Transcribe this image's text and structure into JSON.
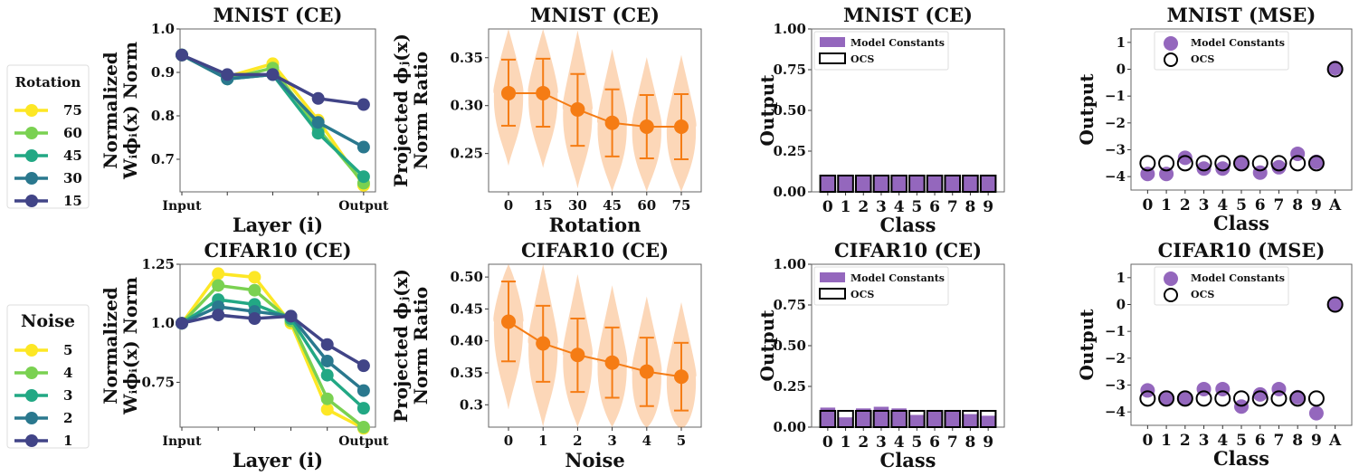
{
  "chart_data": [
    {
      "type": "line",
      "title": "MNIST (CE)",
      "xlabel": "Layer (i)",
      "ylabel": [
        "Normalized",
        "Wᵢϕᵢ(x) Norm"
      ],
      "x_ticklabels": [
        "Input",
        "",
        "",
        "",
        "Output"
      ],
      "ylim": [
        0.625,
        1.0
      ],
      "yticks": [
        0.7,
        0.8,
        0.9,
        1.0
      ],
      "legend": {
        "title": "Rotation",
        "placement": "outside-left"
      },
      "series": [
        {
          "name": "75",
          "color": "#fde725",
          "values": [
            0.94,
            0.89,
            0.92,
            0.79,
            0.64
          ]
        },
        {
          "name": "60",
          "color": "#7ad151",
          "values": [
            0.94,
            0.885,
            0.91,
            0.77,
            0.645
          ]
        },
        {
          "name": "45",
          "color": "#22a884",
          "values": [
            0.94,
            0.885,
            0.895,
            0.76,
            0.66
          ]
        },
        {
          "name": "30",
          "color": "#2a788e",
          "values": [
            0.94,
            0.885,
            0.895,
            0.785,
            0.728
          ]
        },
        {
          "name": "15",
          "color": "#414487",
          "values": [
            0.94,
            0.895,
            0.895,
            0.84,
            0.826
          ]
        }
      ]
    },
    {
      "type": "violin",
      "title": "MNIST (CE)",
      "xlabel": "Rotation",
      "ylabel": [
        "Projected ϕⱼ(x)",
        "Norm Ratio"
      ],
      "categories": [
        "0",
        "15",
        "30",
        "45",
        "60",
        "75"
      ],
      "ylim": [
        0.21,
        0.38
      ],
      "yticks": [
        0.25,
        0.3,
        0.35
      ],
      "ytick_labels": [
        "0.25",
        "0.30",
        "0.35"
      ],
      "color": "#f57c14",
      "means": [
        0.313,
        0.313,
        0.296,
        0.282,
        0.278,
        0.278
      ],
      "lows": [
        0.279,
        0.278,
        0.258,
        0.247,
        0.245,
        0.244
      ],
      "highs": [
        0.348,
        0.349,
        0.333,
        0.317,
        0.311,
        0.312
      ]
    },
    {
      "type": "bar",
      "title": "MNIST (CE)",
      "xlabel": "Class",
      "ylabel": "Output",
      "categories": [
        "0",
        "1",
        "2",
        "3",
        "4",
        "5",
        "6",
        "7",
        "8",
        "9"
      ],
      "ylim": [
        0,
        1
      ],
      "yticks": [
        0,
        0.25,
        0.5,
        0.75,
        1.0
      ],
      "ytick_labels": [
        "0.00",
        "0.25",
        "0.50",
        "0.75",
        "1.00"
      ],
      "legend": {
        "placement": "top-left"
      },
      "series": [
        {
          "name": "Model Constants",
          "color": "#9467bd",
          "values": [
            0.1,
            0.105,
            0.1,
            0.1,
            0.1,
            0.1,
            0.1,
            0.1,
            0.1,
            0.1
          ]
        },
        {
          "name": "OCS",
          "color": "#000000",
          "values": [
            0.1,
            0.1,
            0.1,
            0.1,
            0.1,
            0.1,
            0.1,
            0.1,
            0.1,
            0.1
          ]
        }
      ]
    },
    {
      "type": "scatter",
      "title": "MNIST (MSE)",
      "xlabel": "Class",
      "ylabel": "Output",
      "categories": [
        "0",
        "1",
        "2",
        "3",
        "4",
        "5",
        "6",
        "7",
        "8",
        "9",
        "A"
      ],
      "ylim": [
        -4.5,
        1.5
      ],
      "yticks": [
        -4,
        -3,
        -2,
        -1,
        0,
        1
      ],
      "ytick_labels": [
        "−4",
        "−3",
        "−2",
        "−1",
        "0",
        "1"
      ],
      "legend": {
        "placement": "top-left"
      },
      "series": [
        {
          "name": "Model Constants",
          "color": "#9467bd",
          "values": [
            -3.9,
            -3.9,
            -3.3,
            -3.7,
            -3.7,
            -3.5,
            -3.85,
            -3.65,
            -3.15,
            -3.45,
            0.05
          ]
        },
        {
          "name": "OCS",
          "color": "#000000",
          "values": [
            -3.5,
            -3.5,
            -3.5,
            -3.5,
            -3.5,
            -3.5,
            -3.5,
            -3.5,
            -3.5,
            -3.5,
            0
          ]
        }
      ]
    },
    {
      "type": "line",
      "title": "CIFAR10 (CE)",
      "xlabel": "Layer (i)",
      "ylabel": [
        "Normalized",
        "Wᵢϕᵢ(x) Norm"
      ],
      "x_ticklabels": [
        "Input",
        "",
        "",
        "",
        "",
        "Output"
      ],
      "ylim": [
        0.56,
        1.25
      ],
      "yticks": [
        0.75,
        1.0,
        1.25
      ],
      "ytick_labels": [
        "0.75",
        "1.0",
        "1.25"
      ],
      "legend": {
        "title": "Noise",
        "placement": "outside-left"
      },
      "series": [
        {
          "name": "5",
          "color": "#fde725",
          "values": [
            1.0,
            1.21,
            1.195,
            1.0,
            0.635,
            0.555
          ]
        },
        {
          "name": "4",
          "color": "#7ad151",
          "values": [
            1.0,
            1.16,
            1.14,
            1.01,
            0.68,
            0.56
          ]
        },
        {
          "name": "3",
          "color": "#22a884",
          "values": [
            1.0,
            1.1,
            1.08,
            1.02,
            0.78,
            0.64
          ]
        },
        {
          "name": "2",
          "color": "#2a788e",
          "values": [
            1.0,
            1.07,
            1.05,
            1.03,
            0.84,
            0.715
          ]
        },
        {
          "name": "1",
          "color": "#414487",
          "values": [
            1.0,
            1.035,
            1.02,
            1.03,
            0.91,
            0.82
          ]
        }
      ]
    },
    {
      "type": "violin",
      "title": "CIFAR10 (CE)",
      "xlabel": "Noise",
      "ylabel": [
        "Projected ϕⱼ(x)",
        "Norm Ratio"
      ],
      "categories": [
        "0",
        "1",
        "2",
        "3",
        "4",
        "5"
      ],
      "ylim": [
        0.265,
        0.52
      ],
      "yticks": [
        0.3,
        0.35,
        0.4,
        0.45,
        0.5
      ],
      "ytick_labels": [
        "0.3",
        "0.35",
        "0.40",
        "0.45",
        "0.50"
      ],
      "color": "#f57c14",
      "means": [
        0.43,
        0.396,
        0.378,
        0.366,
        0.352,
        0.344
      ],
      "lows": [
        0.368,
        0.336,
        0.32,
        0.311,
        0.298,
        0.291
      ],
      "highs": [
        0.493,
        0.455,
        0.435,
        0.421,
        0.405,
        0.397
      ]
    },
    {
      "type": "bar",
      "title": "CIFAR10 (CE)",
      "xlabel": "Class",
      "ylabel": "Output",
      "categories": [
        "0",
        "1",
        "2",
        "3",
        "4",
        "5",
        "6",
        "7",
        "8",
        "9"
      ],
      "ylim": [
        0,
        1
      ],
      "yticks": [
        0,
        0.25,
        0.5,
        0.75,
        1.0
      ],
      "ytick_labels": [
        "0.00",
        "0.25",
        "0.50",
        "0.75",
        "1.00"
      ],
      "legend": {
        "placement": "top-left"
      },
      "series": [
        {
          "name": "Model Constants",
          "color": "#9467bd",
          "values": [
            0.12,
            0.06,
            0.115,
            0.125,
            0.115,
            0.075,
            0.1,
            0.095,
            0.08,
            0.07
          ]
        },
        {
          "name": "OCS",
          "color": "#000000",
          "values": [
            0.1,
            0.1,
            0.1,
            0.1,
            0.1,
            0.1,
            0.1,
            0.1,
            0.1,
            0.1
          ]
        }
      ]
    },
    {
      "type": "scatter",
      "title": "CIFAR10 (MSE)",
      "xlabel": "Class",
      "ylabel": "Output",
      "categories": [
        "0",
        "1",
        "2",
        "3",
        "4",
        "5",
        "6",
        "7",
        "8",
        "9",
        "A"
      ],
      "ylim": [
        -4.5,
        1.5
      ],
      "yticks": [
        -4,
        -3,
        -2,
        -1,
        0,
        1
      ],
      "ytick_labels": [
        "−4",
        "−3",
        "−2",
        "−1",
        "0",
        "1"
      ],
      "legend": {
        "placement": "top-left"
      },
      "series": [
        {
          "name": "Model Constants",
          "color": "#9467bd",
          "values": [
            -3.2,
            -3.5,
            -3.5,
            -3.15,
            -3.15,
            -3.8,
            -3.35,
            -3.15,
            -3.45,
            -4.05,
            0
          ]
        },
        {
          "name": "OCS",
          "color": "#000000",
          "values": [
            -3.5,
            -3.5,
            -3.5,
            -3.5,
            -3.5,
            -3.5,
            -3.5,
            -3.5,
            -3.5,
            -3.5,
            0
          ]
        }
      ]
    }
  ]
}
